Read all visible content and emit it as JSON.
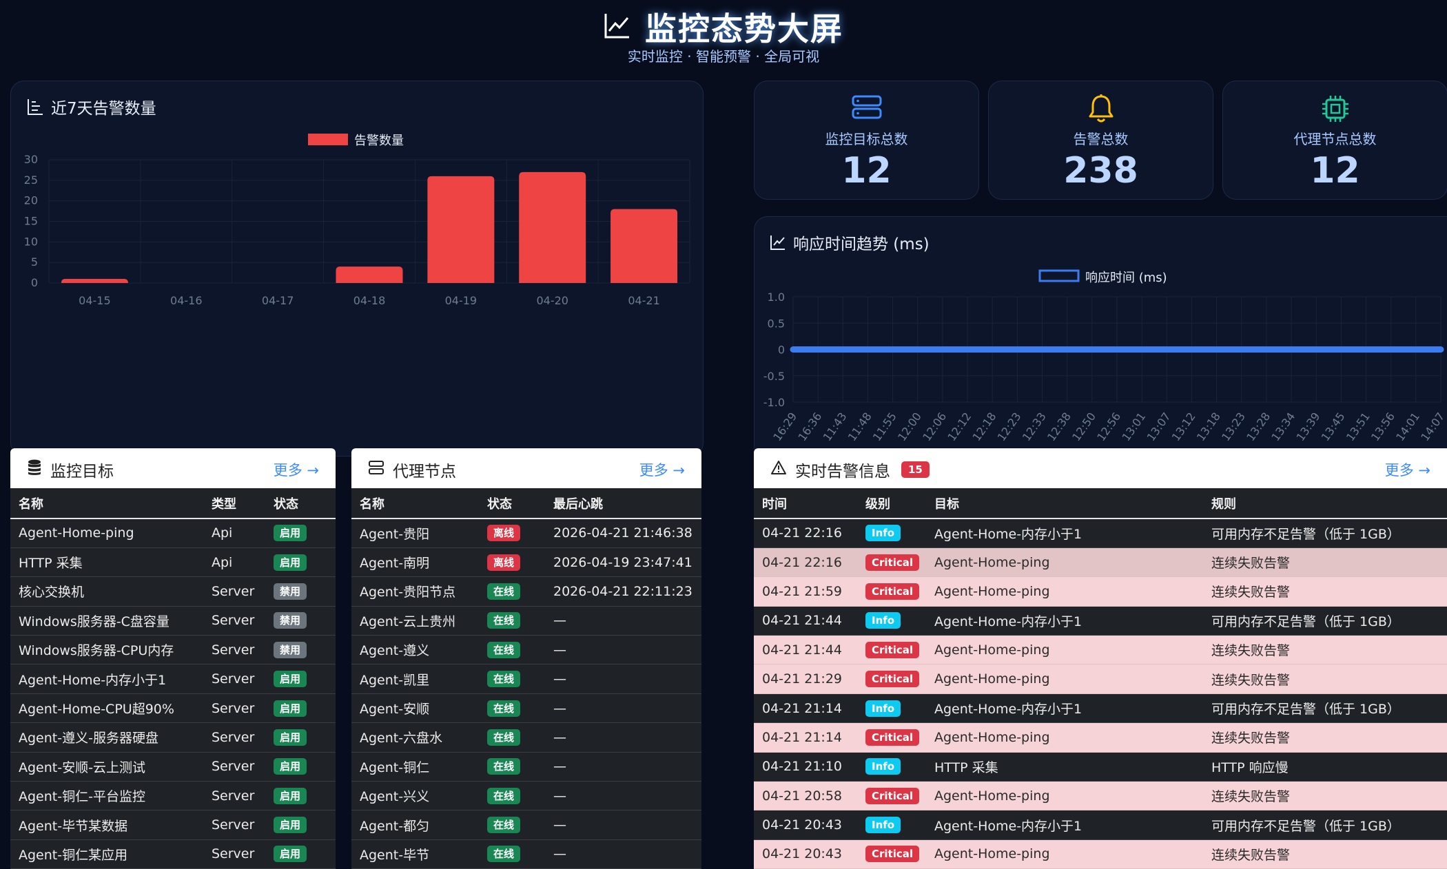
{
  "header": {
    "title": "监控态势大屏",
    "subtitle": "实时监控 · 智能预警 · 全局可视"
  },
  "alert_chart": {
    "title": "近7天告警数量"
  },
  "stats": [
    {
      "label": "监控目标总数",
      "value": "12",
      "icon": "server-stack-icon",
      "color": "#3d8bfd"
    },
    {
      "label": "告警总数",
      "value": "238",
      "icon": "bell-icon",
      "color": "#ffc107"
    },
    {
      "label": "代理节点总数",
      "value": "12",
      "icon": "cpu-chip-icon",
      "color": "#20c997"
    }
  ],
  "response_chart": {
    "title": "响应时间趋势 (ms)"
  },
  "chart_data": [
    {
      "type": "bar",
      "categories": [
        "04-15",
        "04-16",
        "04-17",
        "04-18",
        "04-19",
        "04-20",
        "04-21"
      ],
      "series": [
        {
          "name": "告警数量",
          "values": [
            1,
            0,
            0,
            4,
            26,
            27,
            18
          ],
          "color": "#ef4444"
        }
      ],
      "yticks": [
        0,
        5,
        10,
        15,
        20,
        25,
        30
      ],
      "ylim": [
        0,
        30
      ],
      "legend": "top-center",
      "grid": true
    },
    {
      "type": "line",
      "x": [
        "16:29",
        "16:36",
        "11:43",
        "11:48",
        "11:55",
        "12:00",
        "12:06",
        "12:12",
        "12:18",
        "12:23",
        "12:33",
        "12:38",
        "12:50",
        "12:56",
        "13:01",
        "13:07",
        "13:12",
        "13:18",
        "13:23",
        "13:28",
        "13:34",
        "13:39",
        "13:45",
        "13:51",
        "13:56",
        "14:01",
        "14:07"
      ],
      "series": [
        {
          "name": "响应时间 (ms)",
          "values": [
            0,
            0,
            0,
            0,
            0,
            0,
            0,
            0,
            0,
            0,
            0,
            0,
            0,
            0,
            0,
            0,
            0,
            0,
            0,
            0,
            0,
            0,
            0,
            0,
            0,
            0,
            0
          ],
          "color": "#3b7cf0"
        }
      ],
      "yticks": [
        "1.0",
        "0.5",
        "0",
        "-0.5",
        "-1.0"
      ],
      "ylim": [
        -1,
        1
      ],
      "legend": "top-center",
      "grid": true
    }
  ],
  "targets": {
    "title": "监控目标",
    "more": "更多 →",
    "columns": [
      "名称",
      "类型",
      "状态"
    ],
    "rows": [
      {
        "name": "Agent-Home-ping",
        "type": "Api",
        "status": "启用",
        "style": "green"
      },
      {
        "name": "HTTP 采集",
        "type": "Api",
        "status": "启用",
        "style": "green"
      },
      {
        "name": "核心交换机",
        "type": "Server",
        "status": "禁用",
        "style": "gray"
      },
      {
        "name": "Windows服务器-C盘容量",
        "type": "Server",
        "status": "禁用",
        "style": "gray"
      },
      {
        "name": "Windows服务器-CPU内存",
        "type": "Server",
        "status": "禁用",
        "style": "gray"
      },
      {
        "name": "Agent-Home-内存小于1",
        "type": "Server",
        "status": "启用",
        "style": "green"
      },
      {
        "name": "Agent-Home-CPU超90%",
        "type": "Server",
        "status": "启用",
        "style": "green"
      },
      {
        "name": "Agent-遵义-服务器硬盘",
        "type": "Server",
        "status": "启用",
        "style": "green"
      },
      {
        "name": "Agent-安顺-云上测试",
        "type": "Server",
        "status": "启用",
        "style": "green"
      },
      {
        "name": "Agent-铜仁-平台监控",
        "type": "Server",
        "status": "启用",
        "style": "green"
      },
      {
        "name": "Agent-毕节某数据",
        "type": "Server",
        "status": "启用",
        "style": "green"
      },
      {
        "name": "Agent-铜仁某应用",
        "type": "Server",
        "status": "启用",
        "style": "green"
      }
    ]
  },
  "agents": {
    "title": "代理节点",
    "more": "更多 →",
    "columns": [
      "名称",
      "状态",
      "最后心跳"
    ],
    "rows": [
      {
        "name": "Agent-贵阳",
        "status": "离线",
        "style": "red",
        "heartbeat": "2026-04-21 21:46:38"
      },
      {
        "name": "Agent-南明",
        "status": "离线",
        "style": "red",
        "heartbeat": "2026-04-19 23:47:41"
      },
      {
        "name": "Agent-贵阳节点",
        "status": "在线",
        "style": "green",
        "heartbeat": "2026-04-21 22:11:23"
      },
      {
        "name": "Agent-云上贵州",
        "status": "在线",
        "style": "green",
        "heartbeat": "—"
      },
      {
        "name": "Agent-遵义",
        "status": "在线",
        "style": "green",
        "heartbeat": "—"
      },
      {
        "name": "Agent-凯里",
        "status": "在线",
        "style": "green",
        "heartbeat": "—"
      },
      {
        "name": "Agent-安顺",
        "status": "在线",
        "style": "green",
        "heartbeat": "—"
      },
      {
        "name": "Agent-六盘水",
        "status": "在线",
        "style": "green",
        "heartbeat": "—"
      },
      {
        "name": "Agent-铜仁",
        "status": "在线",
        "style": "green",
        "heartbeat": "—"
      },
      {
        "name": "Agent-兴义",
        "status": "在线",
        "style": "green",
        "heartbeat": "—"
      },
      {
        "name": "Agent-都匀",
        "status": "在线",
        "style": "green",
        "heartbeat": "—"
      },
      {
        "name": "Agent-毕节",
        "status": "在线",
        "style": "green",
        "heartbeat": "—"
      }
    ]
  },
  "alerts": {
    "title": "实时告警信息",
    "count": "15",
    "more": "更多 →",
    "columns": [
      "时间",
      "级别",
      "目标",
      "规则"
    ],
    "rows": [
      {
        "time": "04-21 22:16",
        "level": "Info",
        "target": "Agent-Home-内存小于1",
        "rule": "可用内存不足告警（低于 1GB）"
      },
      {
        "time": "04-21 22:16",
        "level": "Critical",
        "target": "Agent-Home-ping",
        "rule": "连续失败告警"
      },
      {
        "time": "04-21 21:59",
        "level": "Critical",
        "target": "Agent-Home-ping",
        "rule": "连续失败告警"
      },
      {
        "time": "04-21 21:44",
        "level": "Info",
        "target": "Agent-Home-内存小于1",
        "rule": "可用内存不足告警（低于 1GB）"
      },
      {
        "time": "04-21 21:44",
        "level": "Critical",
        "target": "Agent-Home-ping",
        "rule": "连续失败告警"
      },
      {
        "time": "04-21 21:29",
        "level": "Critical",
        "target": "Agent-Home-ping",
        "rule": "连续失败告警"
      },
      {
        "time": "04-21 21:14",
        "level": "Info",
        "target": "Agent-Home-内存小于1",
        "rule": "可用内存不足告警（低于 1GB）"
      },
      {
        "time": "04-21 21:14",
        "level": "Critical",
        "target": "Agent-Home-ping",
        "rule": "连续失败告警"
      },
      {
        "time": "04-21 21:10",
        "level": "Info",
        "target": "HTTP 采集",
        "rule": "HTTP 响应慢"
      },
      {
        "time": "04-21 20:58",
        "level": "Critical",
        "target": "Agent-Home-ping",
        "rule": "连续失败告警"
      },
      {
        "time": "04-21 20:43",
        "level": "Info",
        "target": "Agent-Home-内存小于1",
        "rule": "可用内存不足告警（低于 1GB）"
      },
      {
        "time": "04-21 20:43",
        "level": "Critical",
        "target": "Agent-Home-ping",
        "rule": "连续失败告警"
      }
    ]
  }
}
